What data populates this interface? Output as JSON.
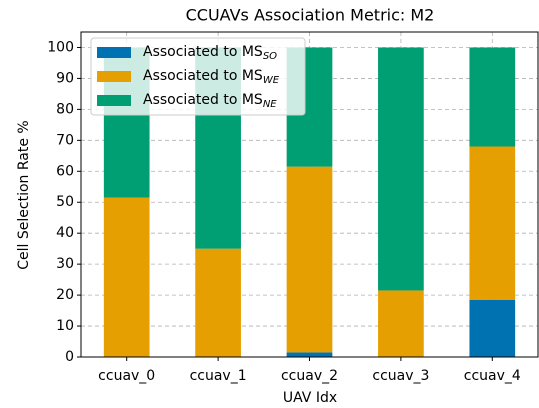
{
  "chart_data": {
    "type": "stacked_bar",
    "title": "CCUAVs Association Metric: M2",
    "x_label": "UAV Idx",
    "y_label": "Cell Selection Rate %",
    "categories": [
      "ccuav_0",
      "ccuav_1",
      "ccuav_2",
      "ccuav_3",
      "ccuav_4"
    ],
    "series": [
      {
        "name": "Associated to MS",
        "name_subscript": "SO",
        "color": "#0072b2",
        "values": [
          0,
          0,
          1.5,
          0,
          18.5
        ]
      },
      {
        "name": "Associated to MS",
        "name_subscript": "WE",
        "color": "#e69f00",
        "values": [
          51.5,
          35,
          60,
          21.5,
          49.5
        ]
      },
      {
        "name": "Associated to MS",
        "name_subscript": "NE",
        "color": "#009e73",
        "values": [
          48.5,
          65,
          38.5,
          78.5,
          32
        ]
      }
    ],
    "ylim": [
      0,
      105
    ],
    "yticks": [
      0,
      10,
      20,
      30,
      40,
      50,
      60,
      70,
      80,
      90,
      100
    ],
    "grid": true,
    "legend": "upper left"
  }
}
